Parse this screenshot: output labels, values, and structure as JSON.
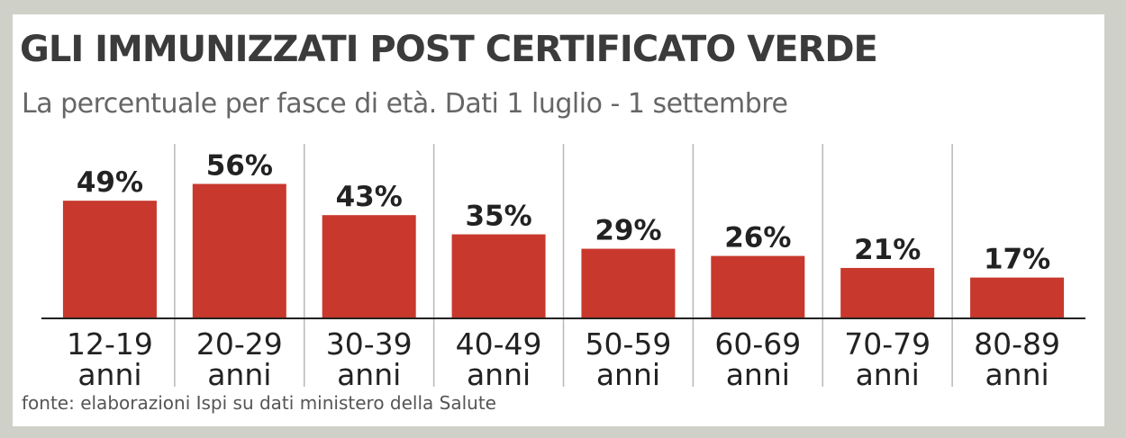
{
  "chart_data": {
    "type": "bar",
    "title": "GLI IMMUNIZZATI POST CERTIFICATO VERDE",
    "subtitle": "La percentuale per fasce di età. Dati 1 luglio - 1 settembre",
    "categories": [
      "12-19",
      "20-29",
      "30-39",
      "40-49",
      "50-59",
      "60-69",
      "70-79",
      "80-89"
    ],
    "category_suffix": "anni",
    "values": [
      49,
      56,
      43,
      35,
      29,
      26,
      21,
      17
    ],
    "value_labels": [
      "49%",
      "56%",
      "43%",
      "35%",
      "29%",
      "26%",
      "21%",
      "17%"
    ],
    "unit": "%",
    "ylim": [
      0,
      60
    ],
    "xlabel": "",
    "ylabel": "",
    "grid": "vertical separators",
    "legend": "none",
    "source": "fonte: elaborazioni Ispi su dati ministero della Salute"
  },
  "colors": {
    "bar": "#c8382c",
    "separator": "#b8b8b8",
    "baseline": "#222222",
    "background": "#cfd0c8",
    "panel": "#ffffff"
  }
}
